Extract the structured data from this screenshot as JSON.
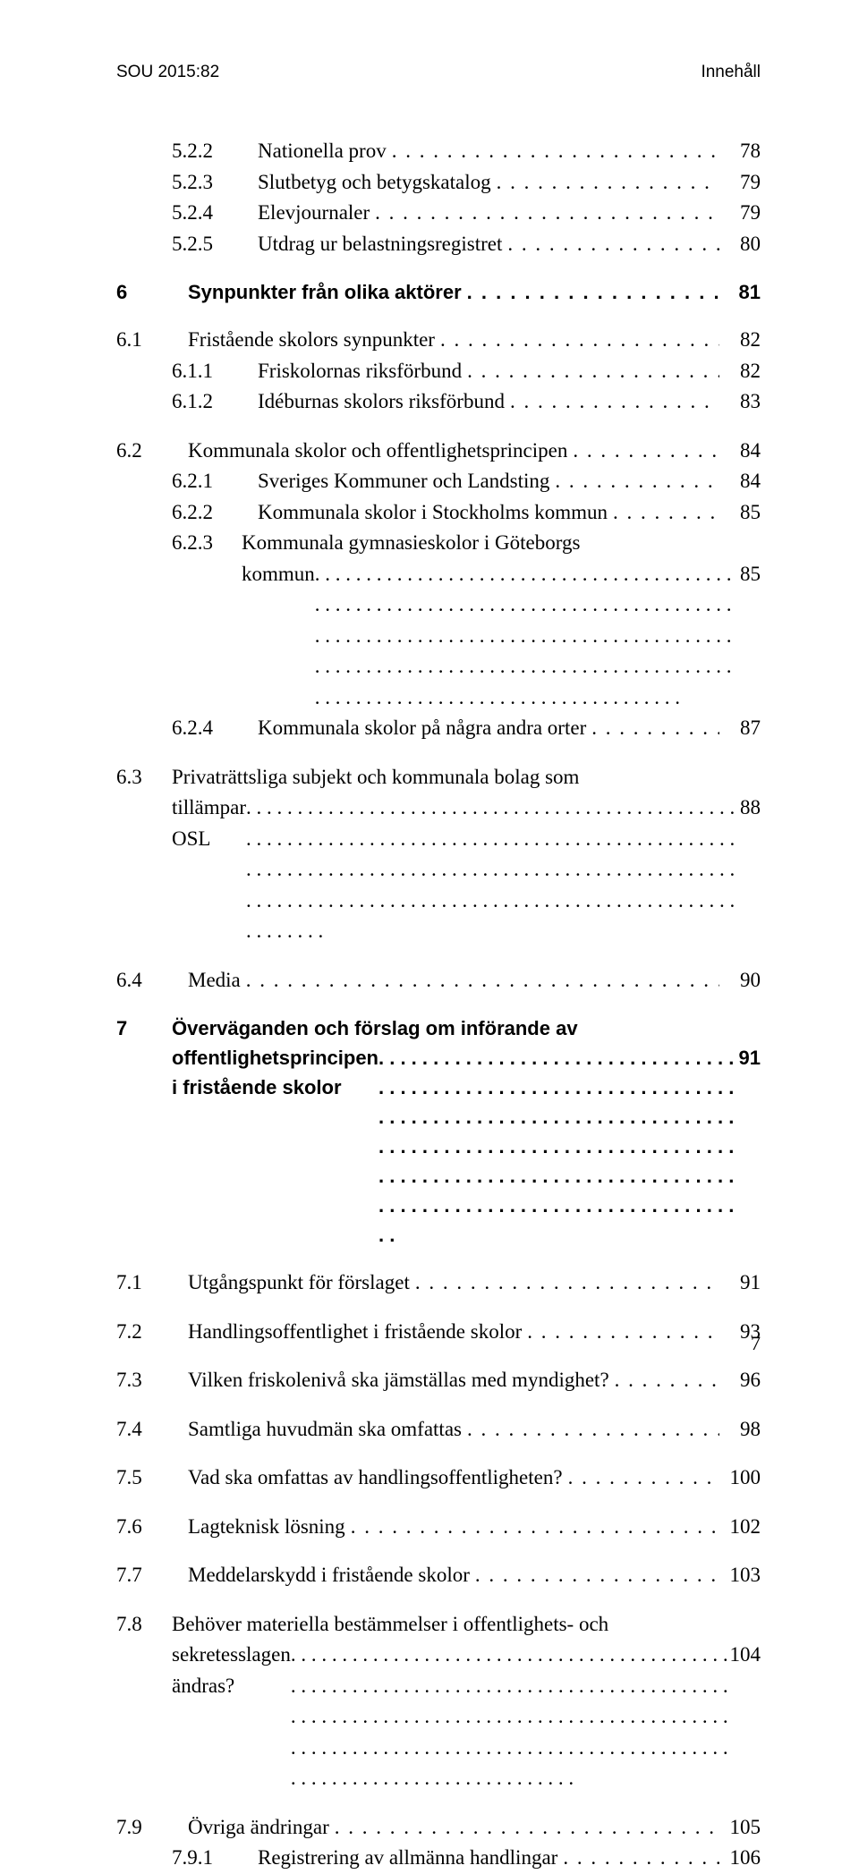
{
  "header": {
    "left": "SOU 2015:82",
    "right": "Innehåll"
  },
  "page_number": "7",
  "entries": [
    {
      "level": 3,
      "num": "5.2.2",
      "title": "Nationella prov",
      "page": "78",
      "gap_before": false,
      "bold": false
    },
    {
      "level": 3,
      "num": "5.2.3",
      "title": "Slutbetyg och betygskatalog",
      "page": "79",
      "gap_before": false,
      "bold": false
    },
    {
      "level": 3,
      "num": "5.2.4",
      "title": "Elevjournaler",
      "page": "79",
      "gap_before": false,
      "bold": false
    },
    {
      "level": 3,
      "num": "5.2.5",
      "title": "Utdrag ur belastningsregistret",
      "page": "80",
      "gap_before": false,
      "bold": false
    },
    {
      "level": 1,
      "num": "6",
      "title": "Synpunkter från olika aktörer",
      "page": "81",
      "gap_before": true,
      "bold": true
    },
    {
      "level": 2,
      "num": "6.1",
      "title": "Fristående skolors synpunkter",
      "page": "82",
      "gap_before": true,
      "bold": false
    },
    {
      "level": 3,
      "num": "6.1.1",
      "title": "Friskolornas riksförbund",
      "page": "82",
      "gap_before": false,
      "bold": false
    },
    {
      "level": 3,
      "num": "6.1.2",
      "title": "Idéburnas skolors riksförbund",
      "page": "83",
      "gap_before": false,
      "bold": false
    },
    {
      "level": 2,
      "num": "6.2",
      "title": "Kommunala skolor och offentlighetsprincipen",
      "page": "84",
      "gap_before": true,
      "bold": false
    },
    {
      "level": 3,
      "num": "6.2.1",
      "title": "Sveriges Kommuner och Landsting",
      "page": "84",
      "gap_before": false,
      "bold": false
    },
    {
      "level": 3,
      "num": "6.2.2",
      "title": "Kommunala skolor i Stockholms kommun",
      "page": "85",
      "gap_before": false,
      "bold": false
    },
    {
      "level": 3,
      "num": "6.2.3",
      "title_line1": "Kommunala gymnasieskolor i Göteborgs",
      "title_line2": "kommun",
      "page": "85",
      "gap_before": false,
      "bold": false,
      "multiline": true
    },
    {
      "level": 3,
      "num": "6.2.4",
      "title": "Kommunala skolor på några andra orter",
      "page": "87",
      "gap_before": false,
      "bold": false
    },
    {
      "level": 2,
      "num": "6.3",
      "title_line1": "Privaträttsliga subjekt och kommunala bolag som",
      "title_line2": "tillämpar OSL",
      "page": "88",
      "gap_before": true,
      "bold": false,
      "multiline": true
    },
    {
      "level": 2,
      "num": "6.4",
      "title": "Media",
      "page": "90",
      "gap_before": true,
      "bold": false
    },
    {
      "level": 1,
      "num": "7",
      "title_line1": "Överväganden och förslag om införande av",
      "title_line2": "offentlighetsprincipen i fristående skolor",
      "page": "91",
      "gap_before": true,
      "bold": true,
      "multiline": true
    },
    {
      "level": 2,
      "num": "7.1",
      "title": "Utgångspunkt för förslaget",
      "page": "91",
      "gap_before": true,
      "bold": false
    },
    {
      "level": 2,
      "num": "7.2",
      "title": "Handlingsoffentlighet i fristående skolor",
      "page": "93",
      "gap_before": true,
      "bold": false
    },
    {
      "level": 2,
      "num": "7.3",
      "title": "Vilken friskolenivå ska jämställas med myndighet?",
      "page": "96",
      "gap_before": true,
      "bold": false
    },
    {
      "level": 2,
      "num": "7.4",
      "title": "Samtliga huvudmän ska omfattas",
      "page": "98",
      "gap_before": true,
      "bold": false
    },
    {
      "level": 2,
      "num": "7.5",
      "title": "Vad ska omfattas av handlingsoffentligheten?",
      "page": "100",
      "gap_before": true,
      "bold": false
    },
    {
      "level": 2,
      "num": "7.6",
      "title": "Lagteknisk lösning",
      "page": "102",
      "gap_before": true,
      "bold": false
    },
    {
      "level": 2,
      "num": "7.7",
      "title": "Meddelarskydd i fristående skolor",
      "page": "103",
      "gap_before": true,
      "bold": false
    },
    {
      "level": 2,
      "num": "7.8",
      "title_line1": "Behöver materiella bestämmelser i offentlighets- och",
      "title_line2": "sekretesslagen ändras?",
      "page": "104",
      "gap_before": true,
      "bold": false,
      "multiline": true
    },
    {
      "level": 2,
      "num": "7.9",
      "title": "Övriga ändringar",
      "page": "105",
      "gap_before": true,
      "bold": false
    },
    {
      "level": 3,
      "num": "7.9.1",
      "title": "Registrering av allmänna handlingar",
      "page": "106",
      "gap_before": false,
      "bold": false
    }
  ]
}
